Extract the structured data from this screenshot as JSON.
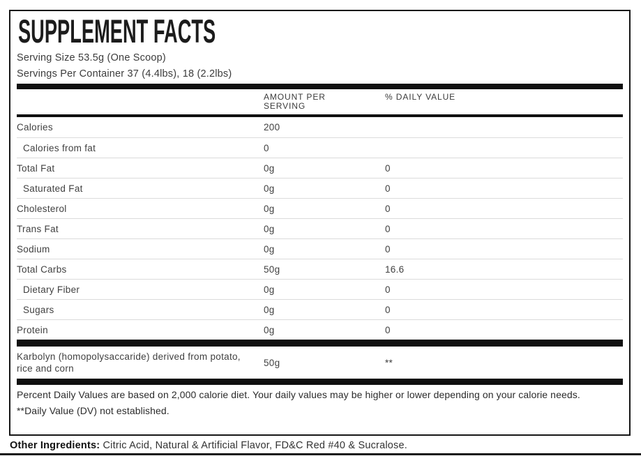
{
  "panel": {
    "title": "SUPPLEMENT FACTS",
    "serving_size": "Serving Size 53.5g (One Scoop)",
    "servings_per_container": "Servings Per Container 37 (4.4lbs), 18 (2.2lbs)",
    "columns": {
      "amount": "AMOUNT PER SERVING",
      "daily_value": "% DAILY VALUE"
    },
    "rows": [
      {
        "name": "Calories",
        "amount": "200",
        "dv": ""
      },
      {
        "name": "Calories from fat",
        "amount": "0",
        "dv": ""
      },
      {
        "name": "Total Fat",
        "amount": "0g",
        "dv": "0"
      },
      {
        "name": "Saturated Fat",
        "amount": "0g",
        "dv": "0"
      },
      {
        "name": "Cholesterol",
        "amount": "0g",
        "dv": "0"
      },
      {
        "name": "Trans Fat",
        "amount": "0g",
        "dv": "0"
      },
      {
        "name": "Sodium",
        "amount": "0g",
        "dv": "0"
      },
      {
        "name": "Total Carbs",
        "amount": "50g",
        "dv": "16.6"
      },
      {
        "name": "Dietary Fiber",
        "amount": "0g",
        "dv": "0"
      },
      {
        "name": "Sugars",
        "amount": "0g",
        "dv": "0"
      },
      {
        "name": "Protein",
        "amount": "0g",
        "dv": "0"
      }
    ],
    "karbolyn": {
      "name": "Karbolyn (homopolysaccaride) derived from potato, rice and corn",
      "amount": "50g",
      "dv": "**"
    },
    "footnotes": [
      "Percent Daily Values are based on 2,000 calorie diet. Your daily values may be higher or lower depending on your calorie needs.",
      "**Daily Value (DV) not established."
    ],
    "other_ingredients_label": "Other Ingredients:",
    "other_ingredients_text": " Citric Acid, Natural & Artificial Flavor, FD&C Red #40 & Sucralose."
  }
}
